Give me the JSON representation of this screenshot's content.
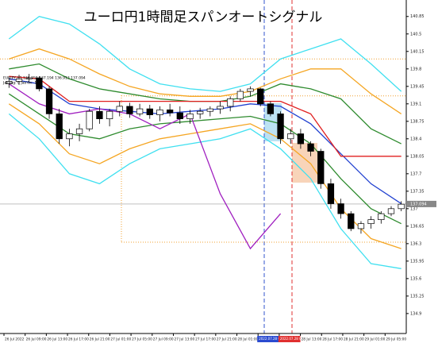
{
  "chart_data": {
    "type": "candlestick",
    "title": "ユーロ円1時間足スパンオートシグナル",
    "info": [
      "EURJPY,H1 136.950 137.194 136.913 137.094",
      "Jakang: 0 JabYm: 1"
    ],
    "ylim": [
      134.5,
      141.18
    ],
    "yticks": [
      140.85,
      140.5,
      140.15,
      139.8,
      139.45,
      139.1,
      138.75,
      138.4,
      138.05,
      137.7,
      137.35,
      137.0,
      136.65,
      136.3,
      135.95,
      135.6,
      135.25,
      134.9
    ],
    "last_price": 137.094,
    "x_labels": [
      "26 Jul 2022",
      "26 Jul 09:00",
      "26 Jul 13:00",
      "26 Jul 17:00",
      "26 Jul 21:00",
      "27 Jul 01:00",
      "27 Jul 05:00",
      "27 Jul 09:00",
      "27 Jul 13:00",
      "27 Jul 17:00",
      "27 Jul 21:00",
      "28 Jul 01:00",
      "2022.07.28 05:00",
      "2022.07.28 09:00",
      "28 Jul 13:00",
      "28 Jul 17:00",
      "28 Jul 21:00",
      "29 Jul 01:00",
      "29 Jul 05:00"
    ],
    "open": [
      139.5,
      139.55,
      139.6,
      139.62,
      139.4,
      138.9,
      138.4,
      138.5,
      138.6,
      138.95,
      138.8,
      138.95,
      139.05,
      138.9,
      139.0,
      138.88,
      138.98,
      138.92,
      138.8,
      138.9,
      138.95,
      139.0,
      139.05,
      139.2,
      139.35,
      139.4,
      139.1,
      138.9,
      138.4,
      138.5,
      138.3,
      138.15,
      137.5,
      137.1,
      136.9,
      136.6,
      136.7,
      136.78,
      136.9,
      137.0
    ],
    "high": [
      139.62,
      139.68,
      139.7,
      139.65,
      139.45,
      139.0,
      138.6,
      138.7,
      139.0,
      139.05,
      139.0,
      139.15,
      139.12,
      139.1,
      139.08,
      139.05,
      139.1,
      139.05,
      138.98,
      139.02,
      139.05,
      139.15,
      139.25,
      139.4,
      139.45,
      139.42,
      139.15,
      138.95,
      138.6,
      138.6,
      138.35,
      138.2,
      137.6,
      137.2,
      136.95,
      136.75,
      136.85,
      136.95,
      137.05,
      137.15
    ],
    "low": [
      139.42,
      139.48,
      139.5,
      139.35,
      138.8,
      138.3,
      138.25,
      138.35,
      138.55,
      138.7,
      138.65,
      138.85,
      138.82,
      138.85,
      138.8,
      138.75,
      138.85,
      138.7,
      138.7,
      138.8,
      138.85,
      138.9,
      138.95,
      139.15,
      139.25,
      139.05,
      138.85,
      138.3,
      138.3,
      138.2,
      138.05,
      137.4,
      137.0,
      136.8,
      136.55,
      136.5,
      136.6,
      136.7,
      136.85,
      136.95
    ],
    "close": [
      139.55,
      139.6,
      139.62,
      139.4,
      138.9,
      138.4,
      138.5,
      138.6,
      138.95,
      138.8,
      138.95,
      139.05,
      138.9,
      139.0,
      138.88,
      138.98,
      138.92,
      138.8,
      138.9,
      138.95,
      139.0,
      139.05,
      139.2,
      139.35,
      139.4,
      139.1,
      138.9,
      138.4,
      138.5,
      138.3,
      138.15,
      137.5,
      137.1,
      136.9,
      136.6,
      136.7,
      136.78,
      136.9,
      137.0,
      137.09
    ],
    "levels": [
      {
        "value": 140.0,
        "color": "#f0a030"
      },
      {
        "value": 139.26,
        "color": "#f0a030"
      },
      {
        "value": 136.33,
        "color": "#f0a030"
      }
    ],
    "indicators": {
      "x": [
        0,
        3,
        6,
        9,
        12,
        15,
        18,
        21,
        24,
        27,
        30,
        33,
        36,
        39
      ],
      "series": [
        {
          "color": "#40e0f0",
          "values": [
            140.4,
            140.85,
            140.7,
            140.3,
            139.8,
            139.5,
            139.4,
            139.35,
            139.5,
            140.0,
            140.2,
            140.4,
            139.9,
            139.35
          ]
        },
        {
          "color": "#40e0f0",
          "values": [
            138.9,
            138.4,
            137.7,
            137.5,
            137.9,
            138.2,
            138.3,
            138.4,
            138.6,
            138.2,
            137.6,
            136.6,
            135.9,
            135.8
          ]
        },
        {
          "color": "#f5a623",
          "values": [
            140.0,
            140.2,
            140.0,
            139.7,
            139.45,
            139.3,
            139.25,
            139.25,
            139.35,
            139.6,
            139.8,
            139.8,
            139.3,
            138.9
          ]
        },
        {
          "color": "#f5a623",
          "values": [
            139.1,
            138.7,
            138.1,
            137.9,
            138.2,
            138.4,
            138.5,
            138.6,
            138.7,
            138.4,
            137.9,
            137.0,
            136.4,
            136.2
          ]
        },
        {
          "color": "#2e8b2e",
          "values": [
            139.8,
            139.9,
            139.6,
            139.4,
            139.3,
            139.2,
            139.15,
            139.15,
            139.25,
            139.5,
            139.4,
            139.2,
            138.6,
            138.3
          ]
        },
        {
          "color": "#2e8b2e",
          "values": [
            139.3,
            138.9,
            138.5,
            138.4,
            138.6,
            138.7,
            138.75,
            138.8,
            138.85,
            138.7,
            138.3,
            137.6,
            137.0,
            136.7
          ]
        },
        {
          "color": "#2040d0",
          "values": [
            139.6,
            139.5,
            139.1,
            139.0,
            138.95,
            138.9,
            138.95,
            139.0,
            139.1,
            139.05,
            138.7,
            138.1,
            137.5,
            137.1
          ]
        },
        {
          "color": "#e02020",
          "values": [
            139.65,
            139.6,
            139.15,
            139.15,
            139.15,
            139.15,
            139.15,
            139.15,
            139.15,
            139.15,
            138.9,
            138.05,
            138.05,
            138.05
          ]
        },
        {
          "color": "#a020c0",
          "values": [
            139.5,
            139.1,
            138.9,
            139.0,
            138.9,
            138.6,
            138.9,
            137.3,
            136.2,
            136.9,
            null,
            null,
            null,
            null
          ]
        }
      ]
    }
  }
}
